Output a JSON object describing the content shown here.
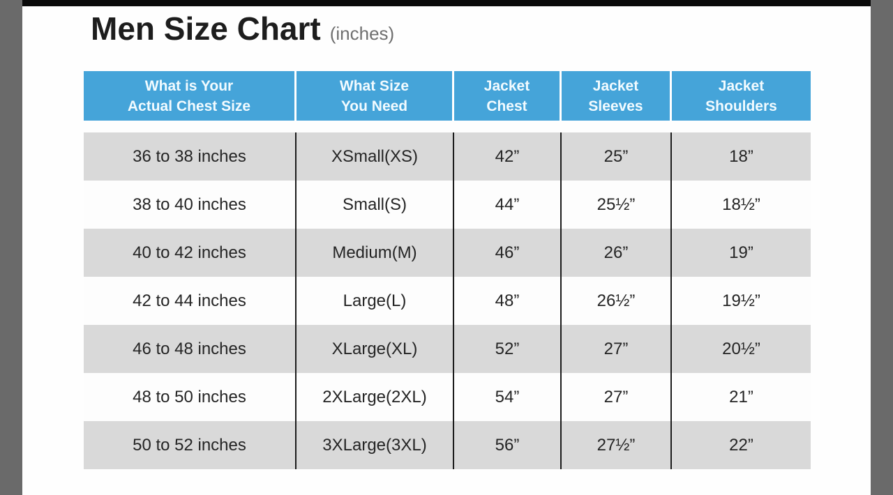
{
  "chart_data": {
    "type": "table",
    "title": "Men Size Chart",
    "subtitle": "(inches)",
    "columns": [
      "What is Your\nActual Chest Size",
      "What Size\nYou Need",
      "Jacket\nChest",
      "Jacket\nSleeves",
      "Jacket\nShoulders"
    ],
    "rows": [
      [
        "36 to 38 inches",
        "XSmall(XS)",
        "42”",
        "25”",
        "18”"
      ],
      [
        "38 to 40 inches",
        "Small(S)",
        "44”",
        "25½”",
        "18½”"
      ],
      [
        "40 to 42 inches",
        "Medium(M)",
        "46”",
        "26”",
        "19”"
      ],
      [
        "42 to 44 inches",
        "Large(L)",
        "48”",
        "26½”",
        "19½”"
      ],
      [
        "46 to 48 inches",
        "XLarge(XL)",
        "52”",
        "27”",
        "20½”"
      ],
      [
        "48 to 50 inches",
        "2XLarge(2XL)",
        "54”",
        "27”",
        "21”"
      ],
      [
        "50 to 52 inches",
        "3XLarge(3XL)",
        "56”",
        "27½”",
        "22”"
      ]
    ]
  },
  "colors": {
    "header_bg": "#45a4d9",
    "header_text": "#f2fbff",
    "row_alt_bg": "#d9d9d9",
    "row_bg": "#fdfdfd",
    "divider": "#1c1c1c",
    "side_bar": "#6a6a6a",
    "top_bar": "#0a0a0a",
    "title_text": "#1d1d1d",
    "subtitle_text": "#6f6f6f",
    "body_text": "#242424"
  }
}
